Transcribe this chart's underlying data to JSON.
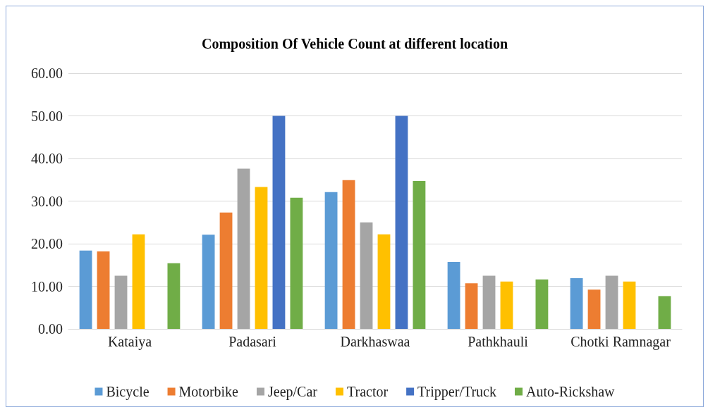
{
  "chart_data": {
    "type": "bar",
    "title": "Composition Of Vehicle Count at different location",
    "categories": [
      "Kataiya",
      "Padasari",
      "Darkhaswaa",
      "Pathkhauli",
      "Chotki Ramnagar"
    ],
    "series": [
      {
        "name": "Bicycle",
        "color": "#5b9bd5",
        "values": [
          18.4,
          22.1,
          32.1,
          15.7,
          11.9
        ]
      },
      {
        "name": "Motorbike",
        "color": "#ed7d31",
        "values": [
          18.2,
          27.3,
          34.9,
          10.7,
          9.2
        ]
      },
      {
        "name": "Jeep/Car",
        "color": "#a5a5a5",
        "values": [
          12.5,
          37.6,
          25.0,
          12.5,
          12.5
        ]
      },
      {
        "name": "Tractor",
        "color": "#ffc000",
        "values": [
          22.2,
          33.3,
          22.2,
          11.1,
          11.1
        ]
      },
      {
        "name": "Tripper/Truck",
        "color": "#4472c4",
        "values": [
          0,
          50.0,
          50.0,
          0,
          0
        ]
      },
      {
        "name": "Auto-Rickshaw",
        "color": "#70ad47",
        "values": [
          15.4,
          30.8,
          34.7,
          11.6,
          7.7
        ]
      }
    ],
    "ylim": [
      0,
      60
    ],
    "yticks": [
      {
        "value": 0,
        "label": "0.00"
      },
      {
        "value": 10,
        "label": "10.00"
      },
      {
        "value": 20,
        "label": "20.00"
      },
      {
        "value": 30,
        "label": "30.00"
      },
      {
        "value": 40,
        "label": "40.00"
      },
      {
        "value": 50,
        "label": "50.00"
      },
      {
        "value": 60,
        "label": "60.00"
      }
    ],
    "grid": "y",
    "legend": "bottom"
  }
}
